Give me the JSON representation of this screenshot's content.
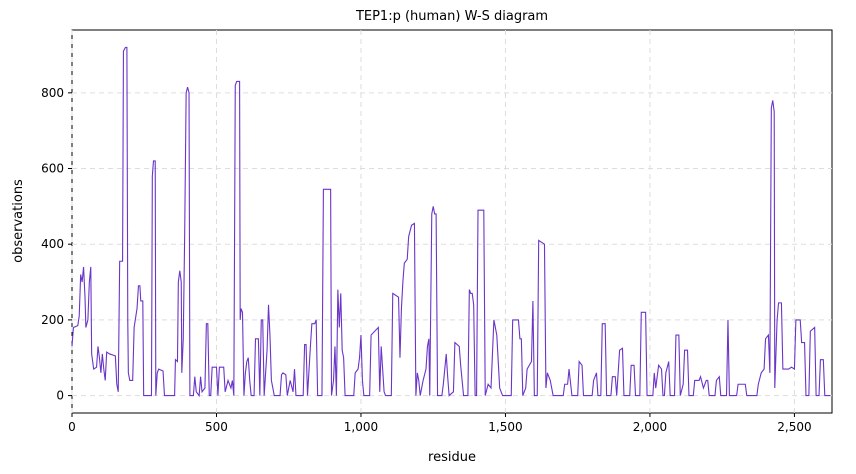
{
  "chart_data": {
    "type": "line",
    "title": "TEP1:p (human) W-S diagram",
    "x_label": "residue",
    "y_label": "observations",
    "xlim": [
      0,
      2630
    ],
    "ylim": [
      -46,
      966
    ],
    "xticks": [
      0,
      500,
      {
        "value": 1000,
        "label": "1,000"
      },
      {
        "value": 1500,
        "label": "1,500"
      },
      {
        "value": 2000,
        "label": "2,000"
      },
      {
        "value": 2500,
        "label": "2,500"
      }
    ],
    "yticks": [
      0,
      200,
      400,
      600,
      800
    ],
    "grid": true,
    "series": [
      {
        "name": "observations",
        "color": "#6a35c8",
        "x": [
          0,
          5,
          20,
          25,
          30,
          35,
          40,
          45,
          48,
          55,
          60,
          65,
          68,
          75,
          85,
          90,
          95,
          100,
          105,
          110,
          115,
          120,
          130,
          150,
          155,
          160,
          165,
          175,
          178,
          185,
          190,
          193,
          195,
          200,
          210,
          215,
          225,
          230,
          235,
          238,
          245,
          248,
          275,
          278,
          282,
          288,
          290,
          295,
          300,
          315,
          320,
          355,
          358,
          365,
          368,
          373,
          378,
          380,
          385,
          390,
          395,
          400,
          405,
          408,
          420,
          425,
          430,
          440,
          445,
          450,
          460,
          465,
          470,
          475,
          480,
          485,
          500,
          505,
          510,
          525,
          530,
          540,
          550,
          555,
          560,
          565,
          570,
          580,
          582,
          585,
          590,
          595,
          600,
          605,
          610,
          615,
          620,
          630,
          635,
          645,
          650,
          655,
          660,
          665,
          675,
          680,
          685,
          690,
          700,
          720,
          725,
          730,
          740,
          745,
          755,
          765,
          770,
          775,
          800,
          805,
          810,
          815,
          825,
          830,
          840,
          845,
          850,
          865,
          870,
          895,
          898,
          905,
          910,
          915,
          920,
          925,
          930,
          935,
          940,
          945,
          975,
          980,
          990,
          995,
          1000,
          1005,
          1010,
          1030,
          1035,
          1060,
          1065,
          1070,
          1080,
          1085,
          1105,
          1110,
          1130,
          1135,
          1140,
          1145,
          1150,
          1160,
          1165,
          1175,
          1185,
          1190,
          1195,
          1200,
          1205,
          1215,
          1225,
          1230,
          1235,
          1238,
          1245,
          1250,
          1255,
          1260,
          1265,
          1280,
          1285,
          1295,
          1300,
          1305,
          1320,
          1325,
          1340,
          1345,
          1355,
          1370,
          1375,
          1380,
          1385,
          1390,
          1395,
          1400,
          1405,
          1425,
          1430,
          1440,
          1450,
          1460,
          1470,
          1480,
          1490,
          1520,
          1525,
          1545,
          1550,
          1555,
          1560,
          1570,
          1575,
          1590,
          1595,
          1600,
          1610,
          1615,
          1625,
          1635,
          1640,
          1645,
          1655,
          1665,
          1700,
          1705,
          1715,
          1720,
          1730,
          1750,
          1755,
          1765,
          1770,
          1800,
          1805,
          1815,
          1820,
          1830,
          1835,
          1845,
          1850,
          1865,
          1870,
          1880,
          1885,
          1895,
          1905,
          1910,
          1930,
          1935,
          1945,
          1950,
          1965,
          1970,
          1985,
          1990,
          2010,
          2015,
          2020,
          2030,
          2040,
          2045,
          2050,
          2055,
          2065,
          2070,
          2085,
          2090,
          2100,
          2105,
          2115,
          2120,
          2130,
          2135,
          2150,
          2155,
          2170,
          2175,
          2185,
          2195,
          2200,
          2205,
          2225,
          2230,
          2240,
          2245,
          2265,
          2270,
          2275,
          2300,
          2305,
          2330,
          2335,
          2370,
          2375,
          2385,
          2395,
          2400,
          2410,
          2415,
          2420,
          2425,
          2430,
          2432,
          2440,
          2445,
          2455,
          2460,
          2470,
          2480,
          2490,
          2500,
          2505,
          2520,
          2525,
          2535,
          2540,
          2550,
          2555,
          2570,
          2575,
          2585,
          2590,
          2600,
          2605,
          2625
        ],
        "values": [
          130,
          180,
          185,
          210,
          320,
          300,
          340,
          260,
          180,
          200,
          300,
          340,
          110,
          70,
          75,
          130,
          100,
          60,
          110,
          70,
          40,
          115,
          110,
          105,
          30,
          10,
          355,
          355,
          910,
          920,
          920,
          200,
          60,
          40,
          40,
          180,
          230,
          290,
          290,
          250,
          250,
          0,
          0,
          580,
          620,
          620,
          0,
          60,
          70,
          65,
          0,
          0,
          95,
          90,
          300,
          330,
          300,
          60,
          150,
          430,
          800,
          815,
          800,
          0,
          0,
          50,
          10,
          0,
          50,
          10,
          20,
          190,
          190,
          0,
          0,
          75,
          75,
          0,
          75,
          75,
          10,
          40,
          20,
          40,
          0,
          820,
          830,
          830,
          200,
          230,
          220,
          0,
          60,
          90,
          100,
          40,
          0,
          0,
          150,
          150,
          0,
          200,
          200,
          0,
          120,
          240,
          160,
          40,
          0,
          0,
          55,
          60,
          55,
          0,
          40,
          10,
          70,
          0,
          0,
          135,
          135,
          0,
          130,
          190,
          190,
          200,
          0,
          0,
          545,
          545,
          0,
          40,
          130,
          0,
          280,
          180,
          270,
          120,
          100,
          0,
          0,
          60,
          70,
          100,
          160,
          40,
          0,
          0,
          160,
          180,
          10,
          130,
          10,
          0,
          0,
          270,
          260,
          100,
          230,
          300,
          350,
          360,
          420,
          450,
          455,
          0,
          60,
          40,
          0,
          40,
          70,
          130,
          150,
          0,
          480,
          500,
          480,
          480,
          0,
          0,
          30,
          110,
          50,
          0,
          10,
          140,
          130,
          80,
          0,
          0,
          280,
          270,
          270,
          240,
          0,
          0,
          490,
          490,
          0,
          30,
          20,
          200,
          160,
          20,
          0,
          0,
          200,
          200,
          150,
          150,
          0,
          20,
          70,
          90,
          250,
          0,
          0,
          410,
          405,
          400,
          20,
          60,
          40,
          0,
          0,
          30,
          30,
          70,
          0,
          0,
          90,
          80,
          0,
          0,
          40,
          60,
          0,
          0,
          190,
          190,
          0,
          0,
          50,
          50,
          0,
          120,
          125,
          0,
          0,
          80,
          80,
          0,
          0,
          220,
          220,
          0,
          0,
          60,
          20,
          80,
          70,
          0,
          0,
          60,
          90,
          0,
          0,
          160,
          160,
          0,
          30,
          120,
          120,
          0,
          0,
          40,
          40,
          50,
          20,
          40,
          40,
          0,
          0,
          40,
          50,
          0,
          0,
          200,
          0,
          0,
          30,
          30,
          0,
          0,
          30,
          60,
          70,
          150,
          160,
          60,
          760,
          780,
          750,
          20,
          200,
          245,
          245,
          70,
          70,
          70,
          75,
          70,
          200,
          200,
          140,
          140,
          0,
          0,
          170,
          180,
          0,
          0,
          95,
          95,
          0,
          0
        ]
      }
    ]
  }
}
